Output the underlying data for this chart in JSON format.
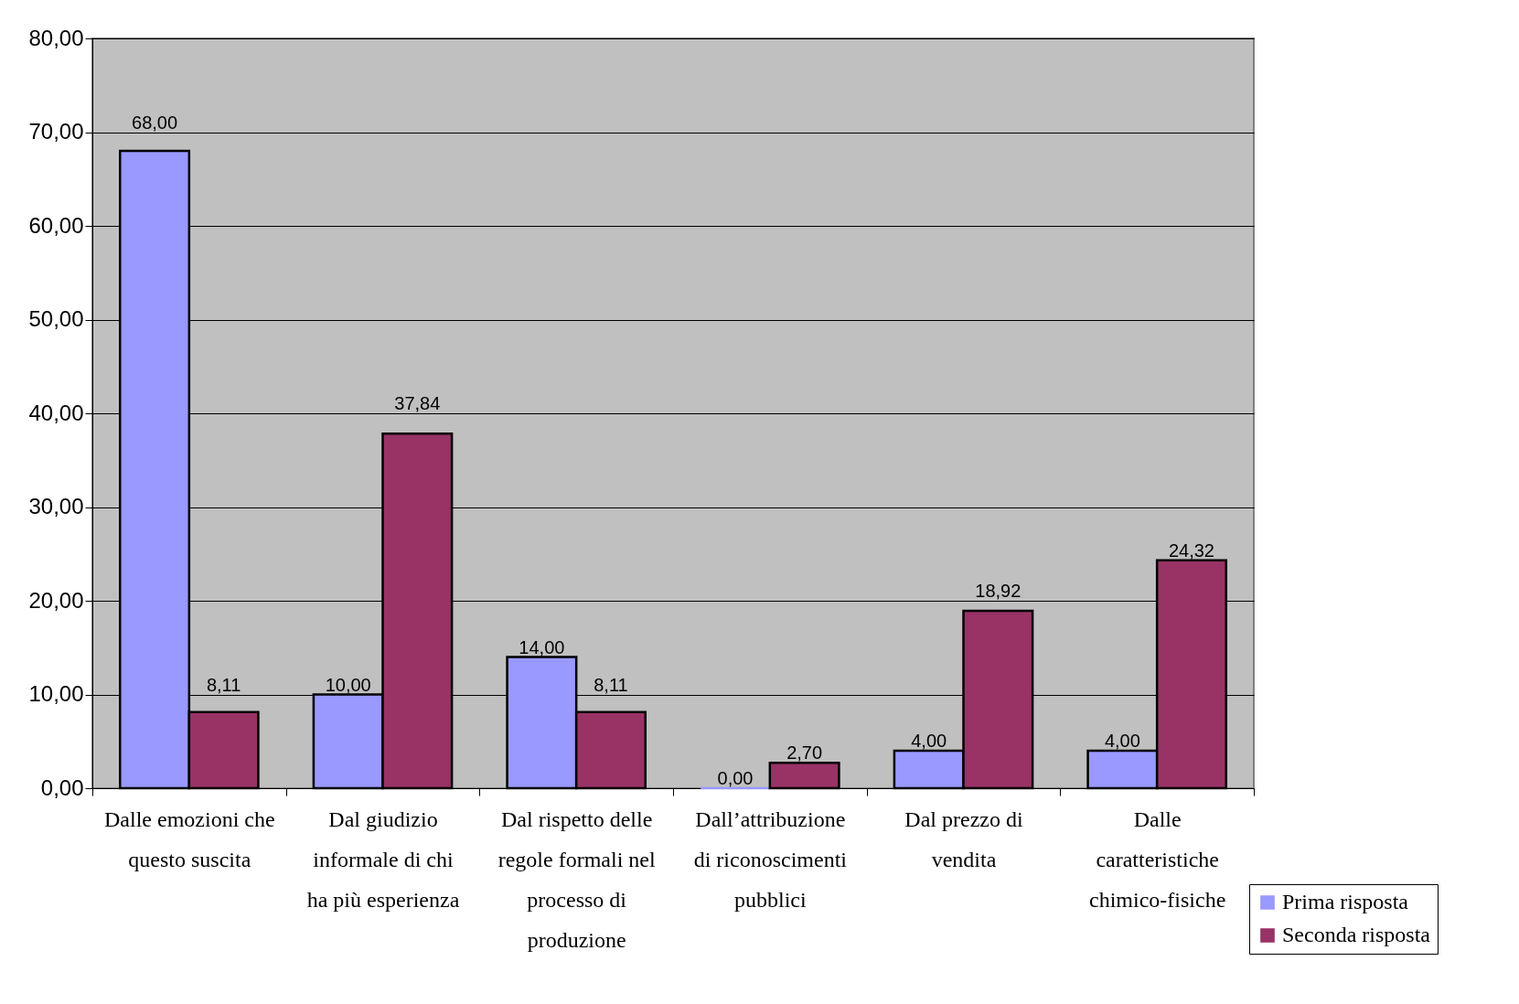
{
  "chart_data": {
    "type": "bar",
    "categories": [
      "Dalle emozioni che questo suscita",
      "Dal giudizio informale di chi ha più esperienza",
      "Dal rispetto delle regole formali nel processo di produzione",
      "Dall’attribuzione di riconoscimenti pubblici",
      "Dal prezzo di vendita",
      "Dalle caratteristiche chimico-fisiche"
    ],
    "series": [
      {
        "name": "Prima risposta",
        "color": "#9999ff",
        "values": [
          68,
          10,
          14,
          0,
          4,
          4
        ],
        "value_labels": [
          "68,00",
          "10,00",
          "14,00",
          "0,00",
          "4,00",
          "4,00"
        ]
      },
      {
        "name": "Seconda risposta",
        "color": "#993366",
        "values": [
          8.11,
          37.84,
          8.11,
          2.7,
          18.92,
          24.32
        ],
        "value_labels": [
          "8,11",
          "37,84",
          "8,11",
          "2,70",
          "18,92",
          "24,32"
        ]
      }
    ],
    "ylim": [
      0,
      80
    ],
    "yticks": [
      {
        "value": 0,
        "label": "0,00"
      },
      {
        "value": 10,
        "label": "10,00"
      },
      {
        "value": 20,
        "label": "20,00"
      },
      {
        "value": 30,
        "label": "30,00"
      },
      {
        "value": 40,
        "label": "40,00"
      },
      {
        "value": 50,
        "label": "50,00"
      },
      {
        "value": 60,
        "label": "60,00"
      },
      {
        "value": 70,
        "label": "70,00"
      },
      {
        "value": 80,
        "label": "80,00"
      }
    ],
    "grid": "y",
    "legend": "bottom right"
  }
}
